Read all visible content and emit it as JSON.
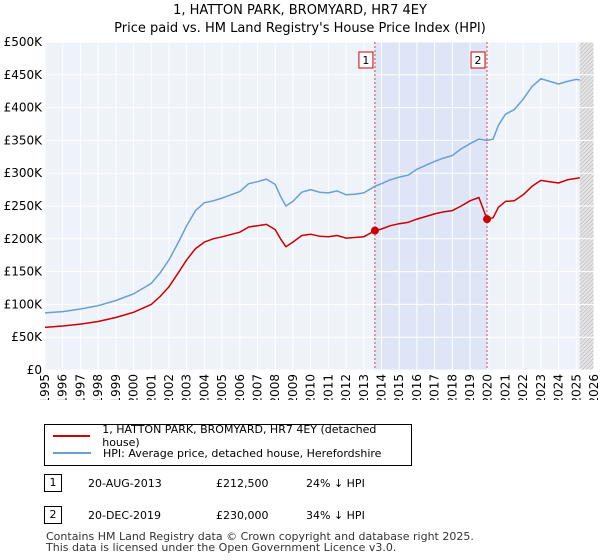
{
  "title_line1": "1, HATTON PARK, BROMYARD, HR7 4EY",
  "title_line2": "Price paid vs. HM Land Registry's House Price Index (HPI)",
  "chart_data": {
    "type": "line",
    "xlim": [
      1995,
      2026
    ],
    "ylim": [
      0,
      500000
    ],
    "x_ticks": [
      1995,
      1996,
      1997,
      1998,
      1999,
      2000,
      2001,
      2002,
      2003,
      2004,
      2005,
      2006,
      2007,
      2008,
      2009,
      2010,
      2011,
      2012,
      2013,
      2014,
      2015,
      2016,
      2017,
      2018,
      2019,
      2020,
      2021,
      2022,
      2023,
      2024,
      2025,
      2026
    ],
    "y_ticks": [
      0,
      50000,
      100000,
      150000,
      200000,
      250000,
      300000,
      350000,
      400000,
      450000,
      500000
    ],
    "y_tick_labels": [
      "£0",
      "£50K",
      "£100K",
      "£150K",
      "£200K",
      "£250K",
      "£300K",
      "£350K",
      "£400K",
      "£450K",
      "£500K"
    ],
    "grid": true,
    "series": [
      {
        "name": "1, HATTON PARK, BROMYARD, HR7 4EY (detached house)",
        "color": "#cc0000",
        "x": [
          1995,
          1996,
          1997,
          1998,
          1999,
          2000,
          2001,
          2001.5,
          2002,
          2002.5,
          2003,
          2003.5,
          2004,
          2004.5,
          2005,
          2006,
          2006.5,
          2007,
          2007.5,
          2008,
          2008.3,
          2008.6,
          2009,
          2009.5,
          2010,
          2010.5,
          2011,
          2011.5,
          2012,
          2012.5,
          2013,
          2013.63,
          2014,
          2014.5,
          2015,
          2015.5,
          2016,
          2016.5,
          2017,
          2017.5,
          2018,
          2018.5,
          2019,
          2019.5,
          2019.96,
          2020.3,
          2020.6,
          2021,
          2021.5,
          2022,
          2022.5,
          2023,
          2023.5,
          2024,
          2024.5,
          2025,
          2025.2
        ],
        "values": [
          65000,
          67000,
          70000,
          74000,
          80000,
          88000,
          100000,
          112000,
          127000,
          147000,
          168000,
          185000,
          195000,
          200000,
          203000,
          210000,
          218000,
          220000,
          222000,
          214000,
          200000,
          188000,
          195000,
          205000,
          207000,
          204000,
          203000,
          205000,
          201000,
          202000,
          203000,
          212500,
          215000,
          220000,
          223000,
          225000,
          230000,
          234000,
          238000,
          241000,
          243000,
          250000,
          258000,
          263000,
          230000,
          232000,
          248000,
          257000,
          258000,
          267000,
          280000,
          289000,
          287000,
          285000,
          290000,
          292000,
          293000
        ]
      },
      {
        "name": "HPI: Average price, detached house, Herefordshire",
        "color": "#6a9fd4",
        "x": [
          1995,
          1996,
          1997,
          1998,
          1999,
          2000,
          2001,
          2001.5,
          2002,
          2002.5,
          2003,
          2003.5,
          2004,
          2004.5,
          2005,
          2006,
          2006.5,
          2007,
          2007.5,
          2008,
          2008.3,
          2008.6,
          2009,
          2009.5,
          2010,
          2010.5,
          2011,
          2011.5,
          2012,
          2012.5,
          2013,
          2013.63,
          2014,
          2014.5,
          2015,
          2015.5,
          2016,
          2016.5,
          2017,
          2017.5,
          2018,
          2018.5,
          2019,
          2019.5,
          2019.96,
          2020.3,
          2020.6,
          2021,
          2021.5,
          2022,
          2022.5,
          2023,
          2023.5,
          2024,
          2024.5,
          2025,
          2025.2
        ],
        "values": [
          87000,
          89000,
          93000,
          98000,
          106000,
          116000,
          132000,
          148000,
          168000,
          193000,
          220000,
          243000,
          255000,
          258000,
          262000,
          272000,
          284000,
          287000,
          291000,
          283000,
          265000,
          250000,
          257000,
          271000,
          275000,
          271000,
          270000,
          273000,
          267000,
          268000,
          270000,
          280000,
          284000,
          290000,
          294000,
          297000,
          306000,
          312000,
          318000,
          323000,
          327000,
          337000,
          345000,
          352000,
          350000,
          352000,
          373000,
          390000,
          397000,
          413000,
          432000,
          444000,
          440000,
          436000,
          440000,
          443000,
          442000
        ]
      }
    ],
    "annotations": [
      {
        "label": "1",
        "x": 2013.63,
        "y": 212500
      },
      {
        "label": "2",
        "x": 2019.96,
        "y": 230000
      }
    ],
    "shaded_x_range": [
      2013.63,
      2019.96
    ],
    "projection_from_x": 2025.2
  },
  "legend": {
    "items": [
      {
        "label": "1, HATTON PARK, BROMYARD, HR7 4EY (detached house)",
        "color": "#cc0000"
      },
      {
        "label": "HPI: Average price, detached house, Herefordshire",
        "color": "#6a9fd4"
      }
    ]
  },
  "transactions": [
    {
      "num": "1",
      "date": "20-AUG-2013",
      "price": "£212,500",
      "hpi": "24% ↓ HPI"
    },
    {
      "num": "2",
      "date": "20-DEC-2019",
      "price": "£230,000",
      "hpi": "34% ↓ HPI"
    }
  ],
  "footer_line1": "Contains HM Land Registry data © Crown copyright and database right 2025.",
  "footer_line2": "This data is licensed under the Open Government Licence v3.0."
}
